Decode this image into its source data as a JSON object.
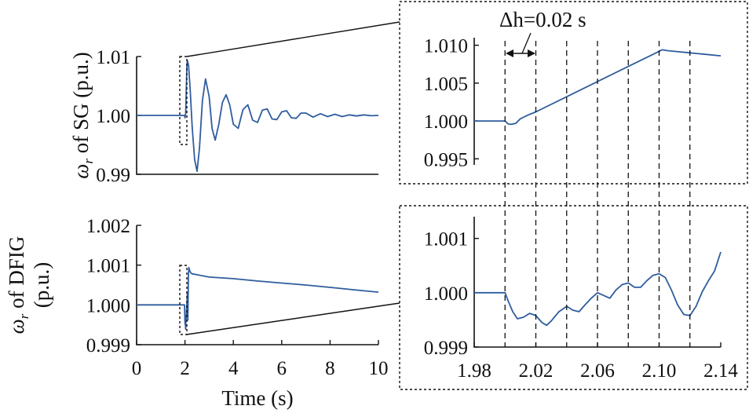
{
  "chart_data": [
    {
      "id": "sg_main",
      "type": "line",
      "ylabel_symbol": "ω",
      "ylabel_sub": "r",
      "ylabel_rest": " of SG (p.u.)",
      "xlim": [
        0,
        10
      ],
      "ylim": [
        0.99,
        1.01
      ],
      "yticks": [
        "1.01",
        "1.00",
        "0.99"
      ],
      "ytick_values": [
        1.01,
        1.0,
        0.99
      ],
      "series": [
        {
          "x": [
            0,
            1.98,
            2.0,
            2.03,
            2.08,
            2.1,
            2.15,
            2.22,
            2.3,
            2.4,
            2.5,
            2.6,
            2.72,
            2.85,
            3.0,
            3.12,
            3.25,
            3.4,
            3.55,
            3.7,
            3.85,
            4.0,
            4.2,
            4.4,
            4.6,
            4.8,
            5.0,
            5.2,
            5.4,
            5.6,
            5.8,
            6.0,
            6.2,
            6.4,
            6.6,
            6.8,
            7.0,
            7.3,
            7.6,
            7.9,
            8.2,
            8.5,
            8.8,
            9.1,
            9.4,
            9.7,
            10.0
          ],
          "y": [
            1.0,
            1.0,
            0.9996,
            1.0003,
            1.0087,
            1.0093,
            1.0085,
            1.004,
            0.998,
            0.9925,
            0.9905,
            0.9945,
            1.0025,
            1.0062,
            1.0032,
            0.9978,
            0.9958,
            0.9985,
            1.0022,
            1.0035,
            1.0018,
            0.9985,
            0.9978,
            1.001,
            1.0018,
            0.9992,
            0.9988,
            1.0009,
            1.0011,
            0.9994,
            0.9993,
            1.0006,
            1.0008,
            0.9996,
            0.9995,
            1.0004,
            1.0004,
            0.9997,
            1.0003,
            0.9998,
            1.0002,
            0.9998,
            1.0001,
            0.9999,
            1.0001,
            0.99995,
            1.0
          ]
        }
      ]
    },
    {
      "id": "sg_zoom",
      "type": "line",
      "annotation": "Δh=0.02 s",
      "xlim": [
        1.98,
        2.14
      ],
      "ylim": [
        0.9942,
        1.011
      ],
      "yticks": [
        "1.010",
        "1.005",
        "1.000",
        "0.995"
      ],
      "ytick_values": [
        1.01,
        1.005,
        1.0,
        0.995
      ],
      "dashed_x": [
        2.0,
        2.02,
        2.04,
        2.06,
        2.08,
        2.1,
        2.12
      ],
      "series": [
        {
          "x": [
            1.98,
            2.0,
            2.002,
            2.004,
            2.007,
            2.01,
            2.015,
            2.02,
            2.04,
            2.06,
            2.08,
            2.1,
            2.102,
            2.105,
            2.11,
            2.12,
            2.13,
            2.14
          ],
          "y": [
            1.0,
            1.0,
            0.9996,
            0.99955,
            0.9997,
            1.0003,
            1.0008,
            1.0012,
            1.0032,
            1.0052,
            1.0072,
            1.0092,
            1.0094,
            1.0093,
            1.0092,
            1.009,
            1.0088,
            1.0086
          ]
        }
      ]
    },
    {
      "id": "dfig_main",
      "type": "line",
      "ylabel_symbol": "ω",
      "ylabel_sub": "r",
      "ylabel_rest": " of DFIG",
      "ylabel_line2": "(p.u.)",
      "xlabel": "Time (s)",
      "xlim": [
        0,
        10
      ],
      "ylim": [
        0.999,
        1.002
      ],
      "xticks": [
        "0",
        "2",
        "4",
        "6",
        "8",
        "10"
      ],
      "xtick_values": [
        0,
        2,
        4,
        6,
        8,
        10
      ],
      "yticks": [
        "1.002",
        "1.001",
        "1.000",
        "0.999"
      ],
      "ytick_values": [
        1.002,
        1.001,
        1.0,
        0.999
      ],
      "series": [
        {
          "x": [
            0,
            1.98,
            2.0,
            2.01,
            2.02,
            2.03,
            2.04,
            2.05,
            2.07,
            2.09,
            2.1,
            2.11,
            2.12,
            2.14,
            2.16,
            2.2,
            2.25,
            2.3,
            2.4,
            3.0,
            4.0,
            5.0,
            6.0,
            7.0,
            8.0,
            9.0,
            10.0
          ],
          "y": [
            1.0,
            1.0,
            0.99956,
            0.99951,
            0.9995,
            0.99939,
            0.99972,
            0.99965,
            0.99995,
            1.00015,
            1.0003,
            0.9998,
            0.99962,
            1.00068,
            1.00094,
            1.00085,
            1.0008,
            1.00078,
            1.00077,
            1.0007,
            1.00066,
            1.0006,
            1.00055,
            1.0005,
            1.00044,
            1.00038,
            1.00032
          ]
        }
      ]
    },
    {
      "id": "dfig_zoom",
      "type": "line",
      "xlim": [
        1.98,
        2.14
      ],
      "ylim": [
        0.999,
        1.0014
      ],
      "xticks": [
        "1.98",
        "2.02",
        "2.06",
        "2.10",
        "2.14"
      ],
      "xtick_values": [
        1.98,
        2.02,
        2.06,
        2.1,
        2.14
      ],
      "yticks": [
        "1.001",
        "1.000",
        "0.999"
      ],
      "ytick_values": [
        1.001,
        1.0,
        0.999
      ],
      "dashed_x": [
        2.0,
        2.02,
        2.04,
        2.06,
        2.08,
        2.1,
        2.12
      ],
      "series": [
        {
          "x": [
            1.98,
            2.0,
            2.002,
            2.005,
            2.008,
            2.012,
            2.016,
            2.02,
            2.024,
            2.027,
            2.03,
            2.035,
            2.04,
            2.044,
            2.048,
            2.052,
            2.056,
            2.06,
            2.064,
            2.068,
            2.072,
            2.076,
            2.08,
            2.084,
            2.088,
            2.092,
            2.096,
            2.1,
            2.104,
            2.108,
            2.112,
            2.116,
            2.12,
            2.124,
            2.128,
            2.132,
            2.136,
            2.14
          ],
          "y": [
            1.0,
            1.0,
            0.99985,
            0.99965,
            0.99952,
            0.99955,
            0.99962,
            0.99958,
            0.99945,
            0.9994,
            0.99948,
            0.99965,
            0.99975,
            0.99968,
            0.99965,
            0.99978,
            0.9999,
            1.0,
            0.99995,
            0.9999,
            1.00005,
            1.00015,
            1.00018,
            1.0001,
            1.0001,
            1.00022,
            1.00032,
            1.00035,
            1.00028,
            1.00005,
            0.99978,
            0.9996,
            0.99958,
            0.99975,
            1.00002,
            1.00022,
            1.0004,
            1.00075
          ]
        }
      ]
    }
  ]
}
